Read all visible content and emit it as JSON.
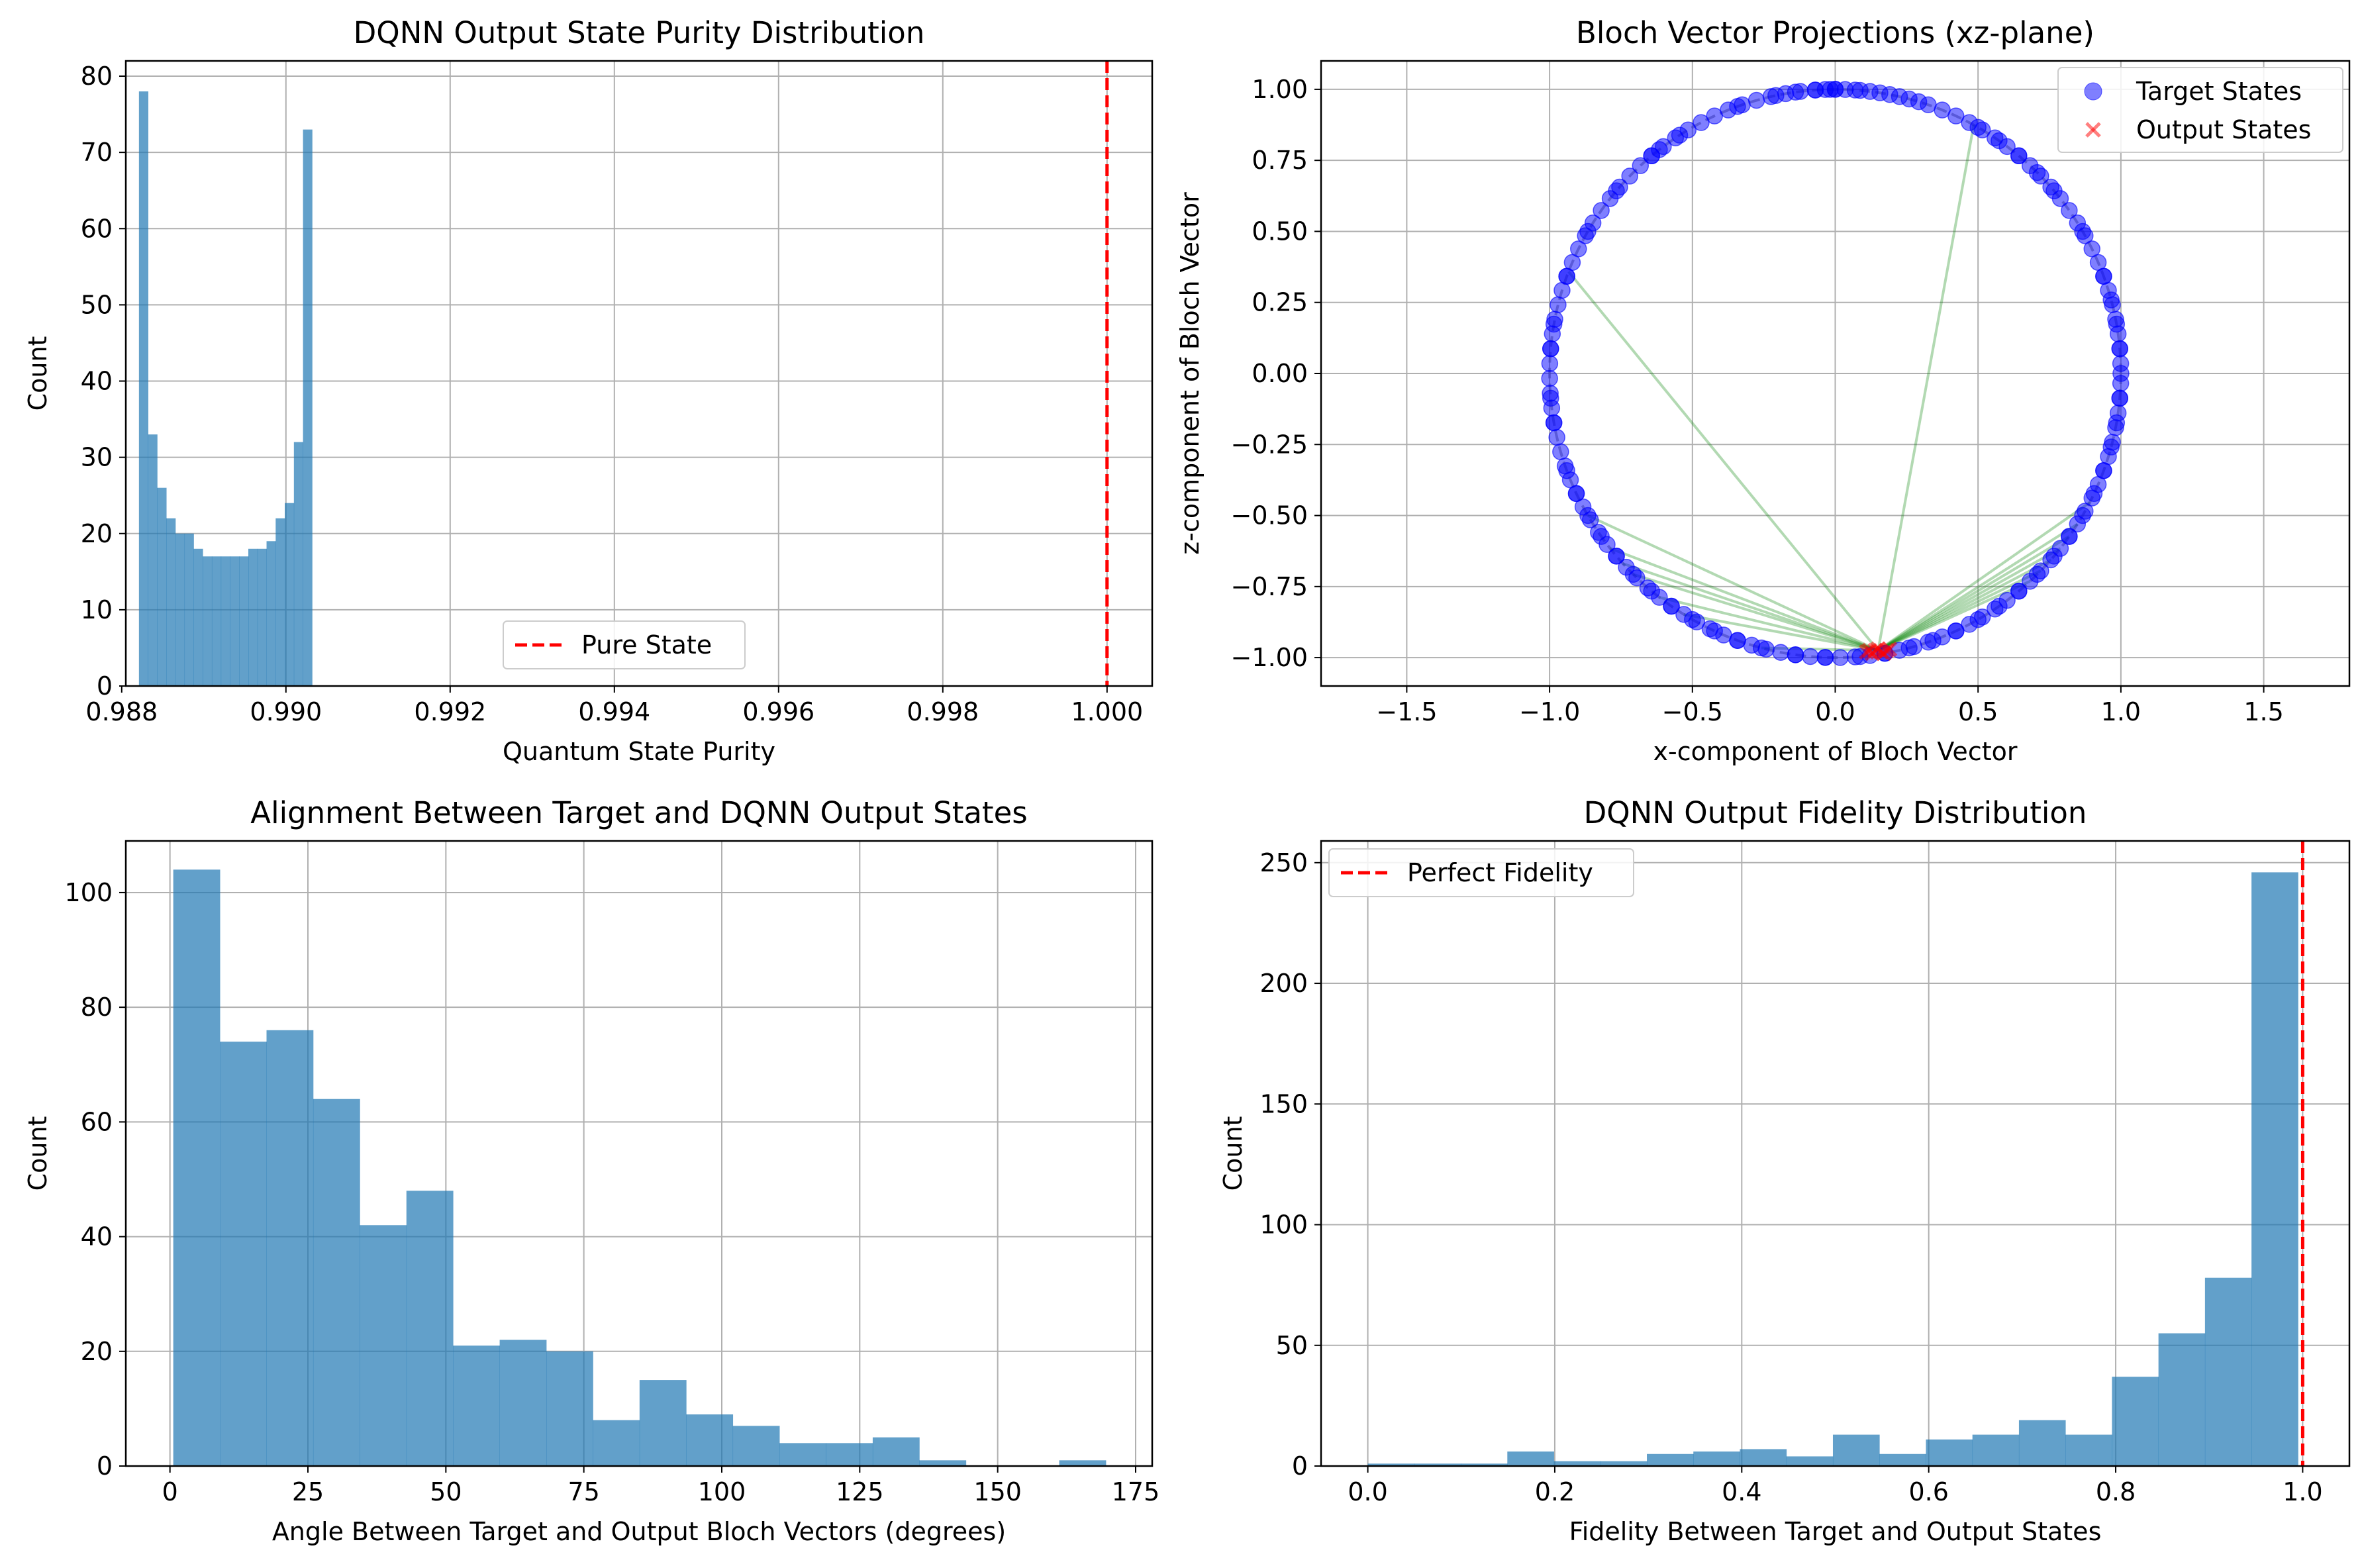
{
  "chart_data": [
    {
      "type": "bar",
      "title": "DQNN Output State Purity Distribution",
      "xlabel": "Quantum State Purity",
      "ylabel": "Count",
      "xlim": [
        0.98805,
        1.00055
      ],
      "ylim": [
        0,
        82
      ],
      "xticks": [
        0.988,
        0.99,
        0.992,
        0.994,
        0.996,
        0.998,
        1.0
      ],
      "xtick_labels": [
        "0.988",
        "0.990",
        "0.992",
        "0.994",
        "0.996",
        "0.998",
        "1.000"
      ],
      "yticks": [
        0,
        10,
        20,
        30,
        40,
        50,
        60,
        70,
        80
      ],
      "ytick_labels": [
        "0",
        "10",
        "20",
        "30",
        "40",
        "50",
        "60",
        "70",
        "80"
      ],
      "grid": true,
      "bar_color": "#1f77b4",
      "bar_alpha": 0.7,
      "bins": {
        "start": 0.98821,
        "width": 0.000111
      },
      "values": [
        78,
        33,
        26,
        22,
        20,
        20,
        18,
        17,
        17,
        17,
        17,
        17,
        18,
        18,
        19,
        22,
        24,
        32,
        73
      ],
      "vline": {
        "x": 1.0,
        "color": "#ff0000",
        "label": "Pure State"
      },
      "legend": {
        "position": "lower center",
        "entries": [
          {
            "label": "Pure State",
            "style": "red-dashed"
          }
        ]
      }
    },
    {
      "type": "scatter",
      "title": "Bloch Vector Projections (xz-plane)",
      "xlabel": "x-component of Bloch Vector",
      "ylabel": "z-component of Bloch Vector",
      "xlim": [
        -1.8,
        1.8
      ],
      "ylim": [
        -1.1,
        1.1
      ],
      "xticks": [
        -1.5,
        -1.0,
        -0.5,
        0.0,
        0.5,
        1.0,
        1.5
      ],
      "xtick_labels": [
        "−1.5",
        "−1.0",
        "−0.5",
        "0.0",
        "0.5",
        "1.0",
        "1.5"
      ],
      "yticks": [
        -1.0,
        -0.75,
        -0.5,
        -0.25,
        0.0,
        0.25,
        0.5,
        0.75,
        1.0
      ],
      "ytick_labels": [
        "−1.00",
        "−0.75",
        "−0.50",
        "−0.25",
        "0.00",
        "0.25",
        "0.50",
        "0.75",
        "1.00"
      ],
      "grid": true,
      "unit_circle": {
        "color": "#808080",
        "style": "dashed"
      },
      "series": [
        {
          "name": "Target States",
          "marker": "circle",
          "color": "#0000ff",
          "alpha": 0.5,
          "angles_deg": [
            90,
            45,
            140,
            130,
            128,
            123,
            110,
            102,
            98,
            94,
            92,
            90,
            88,
            86,
            85,
            83,
            81,
            79,
            77,
            75,
            73,
            71,
            68,
            65,
            62,
            59,
            56,
            53,
            50,
            47,
            44,
            41,
            38,
            35,
            32,
            29,
            26,
            23,
            20,
            17,
            14,
            11,
            8,
            5,
            2,
            0,
            -2,
            -5,
            -8,
            -11,
            -14,
            -17,
            -20,
            -23,
            -26,
            -29,
            -32,
            -35,
            -38,
            -41,
            -44,
            -47,
            -50,
            -53,
            -56,
            -59,
            -62,
            -65,
            -68,
            -71,
            -74,
            -77,
            -80,
            -83,
            -86,
            -89,
            -92,
            -95,
            -98,
            -101,
            -104,
            -107,
            -110,
            -113,
            -116,
            -119,
            -122,
            -125,
            -128,
            -131,
            -134,
            -137,
            -140,
            -143,
            -146,
            -149,
            -152,
            -155,
            -158,
            -161,
            -164,
            -167,
            -170,
            -173,
            -176,
            -179,
            178,
            175,
            172,
            169,
            166,
            163,
            160,
            157,
            154,
            151,
            148,
            145,
            142,
            139,
            136,
            133,
            130,
            127,
            124,
            121,
            118,
            115,
            112,
            109,
            106,
            103,
            100,
            97,
            94,
            91,
            150,
            160,
            170,
            175,
            185,
            190,
            200,
            205,
            210,
            215,
            220,
            225,
            230,
            235,
            240,
            245,
            250,
            255,
            262,
            268,
            275,
            280,
            285,
            290,
            295,
            300,
            305,
            310,
            315,
            320,
            325,
            330,
            335,
            340,
            345,
            350,
            355,
            5,
            10,
            15,
            20,
            30,
            40,
            50,
            55,
            60
          ],
          "radius": 1.0
        },
        {
          "name": "Output States",
          "marker": "x",
          "color": "#ff0000",
          "alpha": 0.5,
          "points": [
            [
              0.12,
              -0.975
            ],
            [
              0.14,
              -0.975
            ],
            [
              0.16,
              -0.98
            ],
            [
              0.18,
              -0.975
            ],
            [
              0.13,
              -0.985
            ],
            [
              0.15,
              -0.97
            ],
            [
              0.17,
              -0.985
            ],
            [
              0.11,
              -0.98
            ],
            [
              0.19,
              -0.97
            ]
          ]
        }
      ],
      "connections": {
        "color": "#008000",
        "alpha": 0.3,
        "from_target_angles_deg": [
          159,
          210,
          218,
          222,
          61,
          333,
          328,
          325,
          322,
          319,
          316,
          313,
          238,
          255,
          225,
          232
        ],
        "to_output": [
          0.15,
          -0.975
        ]
      },
      "legend": {
        "position": "upper right",
        "entries": [
          {
            "label": "Target States",
            "style": "blue-circle"
          },
          {
            "label": "Output States",
            "style": "red-x"
          }
        ]
      }
    },
    {
      "type": "bar",
      "title": "Alignment Between Target and DQNN Output States",
      "xlabel": "Angle Between Target and Output Bloch Vectors (degrees)",
      "ylabel": "Count",
      "xlim": [
        -8,
        178
      ],
      "ylim": [
        0,
        109
      ],
      "xticks": [
        0,
        25,
        50,
        75,
        100,
        125,
        150,
        175
      ],
      "xtick_labels": [
        "0",
        "25",
        "50",
        "75",
        "100",
        "125",
        "150",
        "175"
      ],
      "yticks": [
        0,
        20,
        40,
        60,
        80,
        100
      ],
      "ytick_labels": [
        "0",
        "20",
        "40",
        "60",
        "80",
        "100"
      ],
      "grid": true,
      "bar_color": "#1f77b4",
      "bar_alpha": 0.7,
      "bins": {
        "start": 0.6,
        "width": 8.45
      },
      "values": [
        104,
        74,
        76,
        64,
        42,
        48,
        21,
        22,
        20,
        8,
        15,
        9,
        7,
        4,
        4,
        5,
        1,
        0,
        0,
        1
      ]
    },
    {
      "type": "bar",
      "title": "DQNN Output Fidelity Distribution",
      "xlabel": "Fidelity Between Target and Output States",
      "ylabel": "Count",
      "xlim": [
        -0.05,
        1.05
      ],
      "ylim": [
        0,
        259
      ],
      "xticks": [
        0.0,
        0.2,
        0.4,
        0.6,
        0.8,
        1.0
      ],
      "xtick_labels": [
        "0.0",
        "0.2",
        "0.4",
        "0.6",
        "0.8",
        "1.0"
      ],
      "yticks": [
        0,
        50,
        100,
        150,
        200,
        250
      ],
      "ytick_labels": [
        "0",
        "50",
        "100",
        "150",
        "200",
        "250"
      ],
      "grid": true,
      "bar_color": "#1f77b4",
      "bar_alpha": 0.7,
      "bins": {
        "start": 0.0,
        "width": 0.04975
      },
      "values": [
        1,
        1,
        1,
        6,
        2,
        2,
        5,
        6,
        7,
        4,
        13,
        5,
        11,
        13,
        19,
        13,
        37,
        55,
        78,
        246
      ],
      "vline": {
        "x": 1.0,
        "color": "#ff0000",
        "label": "Perfect Fidelity"
      },
      "legend": {
        "position": "upper left",
        "entries": [
          {
            "label": "Perfect Fidelity",
            "style": "red-dashed"
          }
        ]
      }
    }
  ]
}
